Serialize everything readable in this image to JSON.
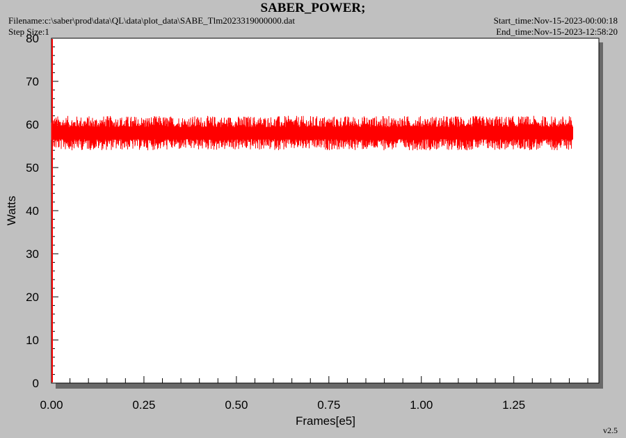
{
  "header": {
    "title": "SABER_POWER;",
    "filename": "Filename:c:\\saber\\prod\\data\\QL\\data\\plot_data\\SABE_Tlm2023319000000.dat",
    "step_size": "Step Size:1",
    "start_time": "Start_time:Nov-15-2023-00:00:18",
    "end_time": "End_time:Nov-15-2023-12:58:20"
  },
  "footer": {
    "version": "v2.5"
  },
  "chart_data": {
    "type": "line",
    "title": "SABER_POWER;",
    "xlabel": "Frames[e5]",
    "ylabel": "Watts",
    "xlim": [
      0.0,
      1.48
    ],
    "ylim": [
      0,
      80
    ],
    "x_ticks": [
      0.0,
      0.25,
      0.5,
      0.75,
      1.0,
      1.25
    ],
    "x_tick_labels": [
      "0.00",
      "0.25",
      "0.50",
      "0.75",
      "1.00",
      "1.25"
    ],
    "y_ticks": [
      0,
      10,
      20,
      30,
      40,
      50,
      60,
      70,
      80
    ],
    "y_tick_labels": [
      "0",
      "10",
      "20",
      "30",
      "40",
      "50",
      "60",
      "70",
      "80"
    ],
    "grid": false,
    "series": [
      {
        "color": "#ff0000",
        "x_range": [
          0.0,
          1.41
        ],
        "mean": 58,
        "min": 54,
        "max": 62
      }
    ]
  }
}
